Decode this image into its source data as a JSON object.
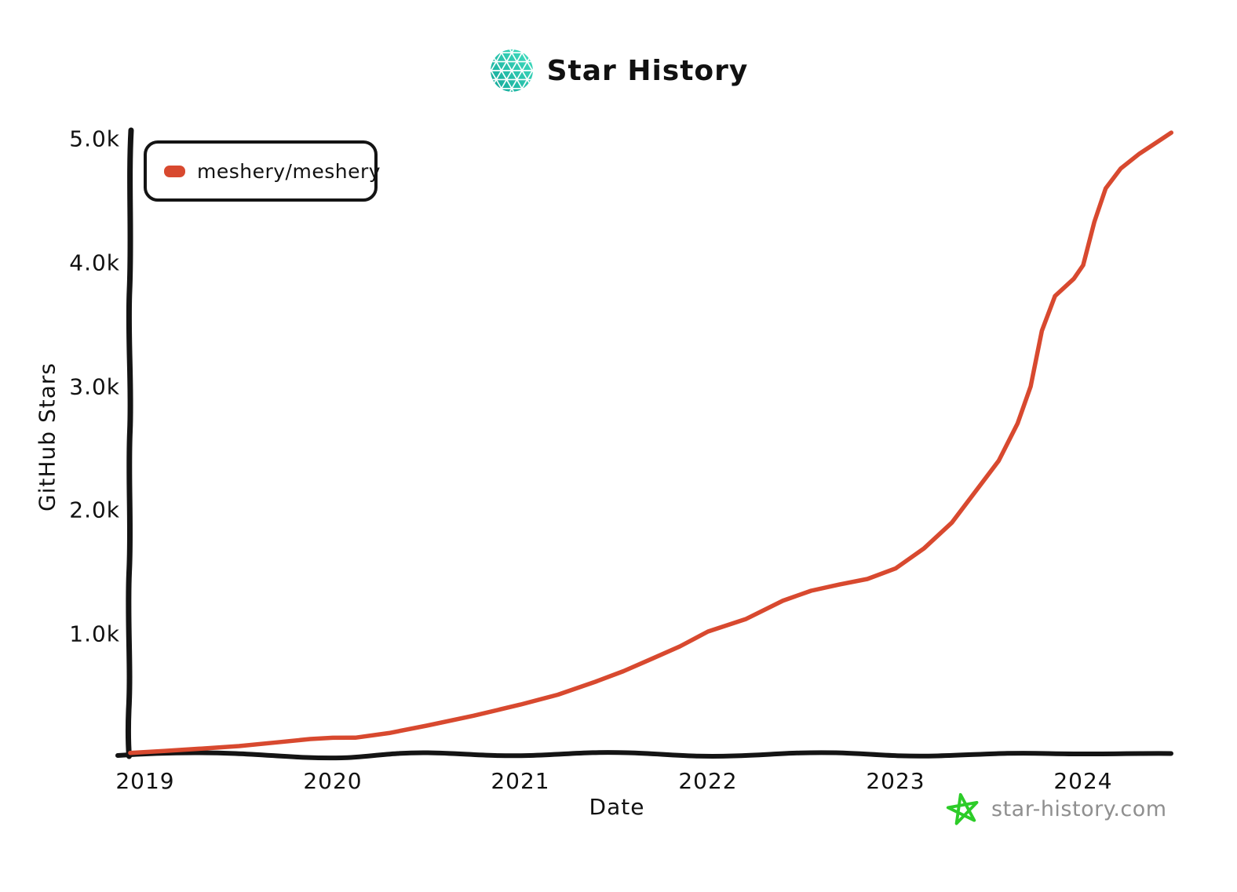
{
  "header": {
    "title": "Star History"
  },
  "legend": {
    "items": [
      {
        "label": "meshery/meshery",
        "color": "#d8492f"
      }
    ]
  },
  "watermark": {
    "text": "star-history.com",
    "star_color": "#2ccc28"
  },
  "colors": {
    "series_red": "#d8492f",
    "axis_black": "#141414",
    "logo_teal_dark": "#0fa396",
    "logo_teal_light": "#46e3c3",
    "watermark_gray": "#8f8f8f",
    "watermark_green": "#2ccc28"
  },
  "chart_data": {
    "type": "line",
    "title": "Star History",
    "xlabel": "Date",
    "ylabel": "GitHub Stars",
    "grid": false,
    "legend_position": "top-left",
    "xlim": [
      2018.9,
      2024.55
    ],
    "ylim": [
      0,
      5100
    ],
    "x_ticks": [
      {
        "label": "2019",
        "value": 2019
      },
      {
        "label": "2020",
        "value": 2020
      },
      {
        "label": "2021",
        "value": 2021
      },
      {
        "label": "2022",
        "value": 2022
      },
      {
        "label": "2023",
        "value": 2023
      },
      {
        "label": "2024",
        "value": 2024
      }
    ],
    "y_ticks": [
      {
        "label": "1.0k",
        "value": 1000
      },
      {
        "label": "2.0k",
        "value": 2000
      },
      {
        "label": "3.0k",
        "value": 3000
      },
      {
        "label": "4.0k",
        "value": 4000
      },
      {
        "label": "5.0k",
        "value": 5000
      }
    ],
    "series": [
      {
        "name": "meshery/meshery",
        "color": "#d8492f",
        "x": [
          2018.92,
          2019.1,
          2019.3,
          2019.5,
          2019.7,
          2019.88,
          2020.0,
          2020.12,
          2020.3,
          2020.5,
          2020.75,
          2021.0,
          2021.2,
          2021.4,
          2021.55,
          2021.7,
          2021.85,
          2022.0,
          2022.2,
          2022.4,
          2022.55,
          2022.7,
          2022.85,
          2023.0,
          2023.15,
          2023.3,
          2023.45,
          2023.55,
          2023.65,
          2023.72,
          2023.78,
          2023.85,
          2023.95,
          2024.0,
          2024.06,
          2024.12,
          2024.2,
          2024.3,
          2024.4,
          2024.47
        ],
        "y": [
          40,
          55,
          75,
          95,
          125,
          152,
          162,
          163,
          200,
          260,
          340,
          430,
          510,
          615,
          700,
          800,
          900,
          1020,
          1120,
          1270,
          1350,
          1400,
          1445,
          1530,
          1690,
          1900,
          2200,
          2400,
          2700,
          3000,
          3450,
          3730,
          3870,
          3980,
          4330,
          4600,
          4760,
          4880,
          4980,
          5050
        ]
      }
    ]
  }
}
